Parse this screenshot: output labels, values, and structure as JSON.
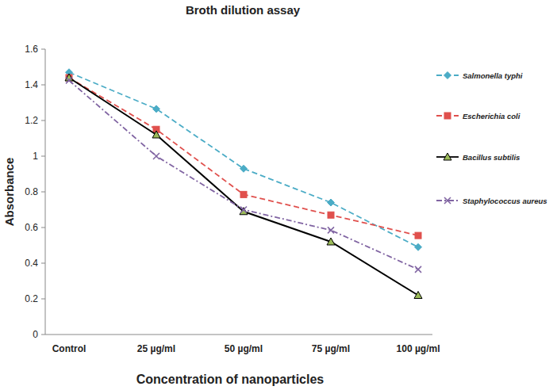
{
  "chart_data": {
    "type": "line",
    "title": "Broth dilution assay",
    "x_label": "Concentration of nanoparticles",
    "y_label": "Absorbance",
    "categories": [
      "Control",
      "25 µg/ml",
      "50 µg/ml",
      "75 µg/ml",
      "100 µg/ml"
    ],
    "series": [
      {
        "name": "Salmonella typhi",
        "color": "#4bacc6",
        "marker": "diamond",
        "line_style": "dashed",
        "values": [
          1.47,
          1.265,
          0.93,
          0.74,
          0.49
        ]
      },
      {
        "name": "Escherichia coli",
        "color": "#e0504d",
        "marker": "square",
        "line_style": "dashed",
        "values": [
          1.44,
          1.15,
          0.785,
          0.67,
          0.555
        ]
      },
      {
        "name": "Bacillus subtilis",
        "color": "#000000",
        "marker": "triangle",
        "line_style": "solid",
        "values": [
          1.44,
          1.12,
          0.69,
          0.52,
          0.22
        ]
      },
      {
        "name": "Staphylococcus aureus",
        "color": "#8064a2",
        "marker": "x",
        "line_style": "dashdot",
        "values": [
          1.425,
          1.0,
          0.7,
          0.585,
          0.365
        ]
      }
    ],
    "ylim": [
      0,
      1.6
    ],
    "yticks": [
      0,
      0.2,
      0.4,
      0.6,
      0.8,
      1,
      1.2,
      1.4,
      1.6
    ],
    "grid": false,
    "legend": "right"
  }
}
